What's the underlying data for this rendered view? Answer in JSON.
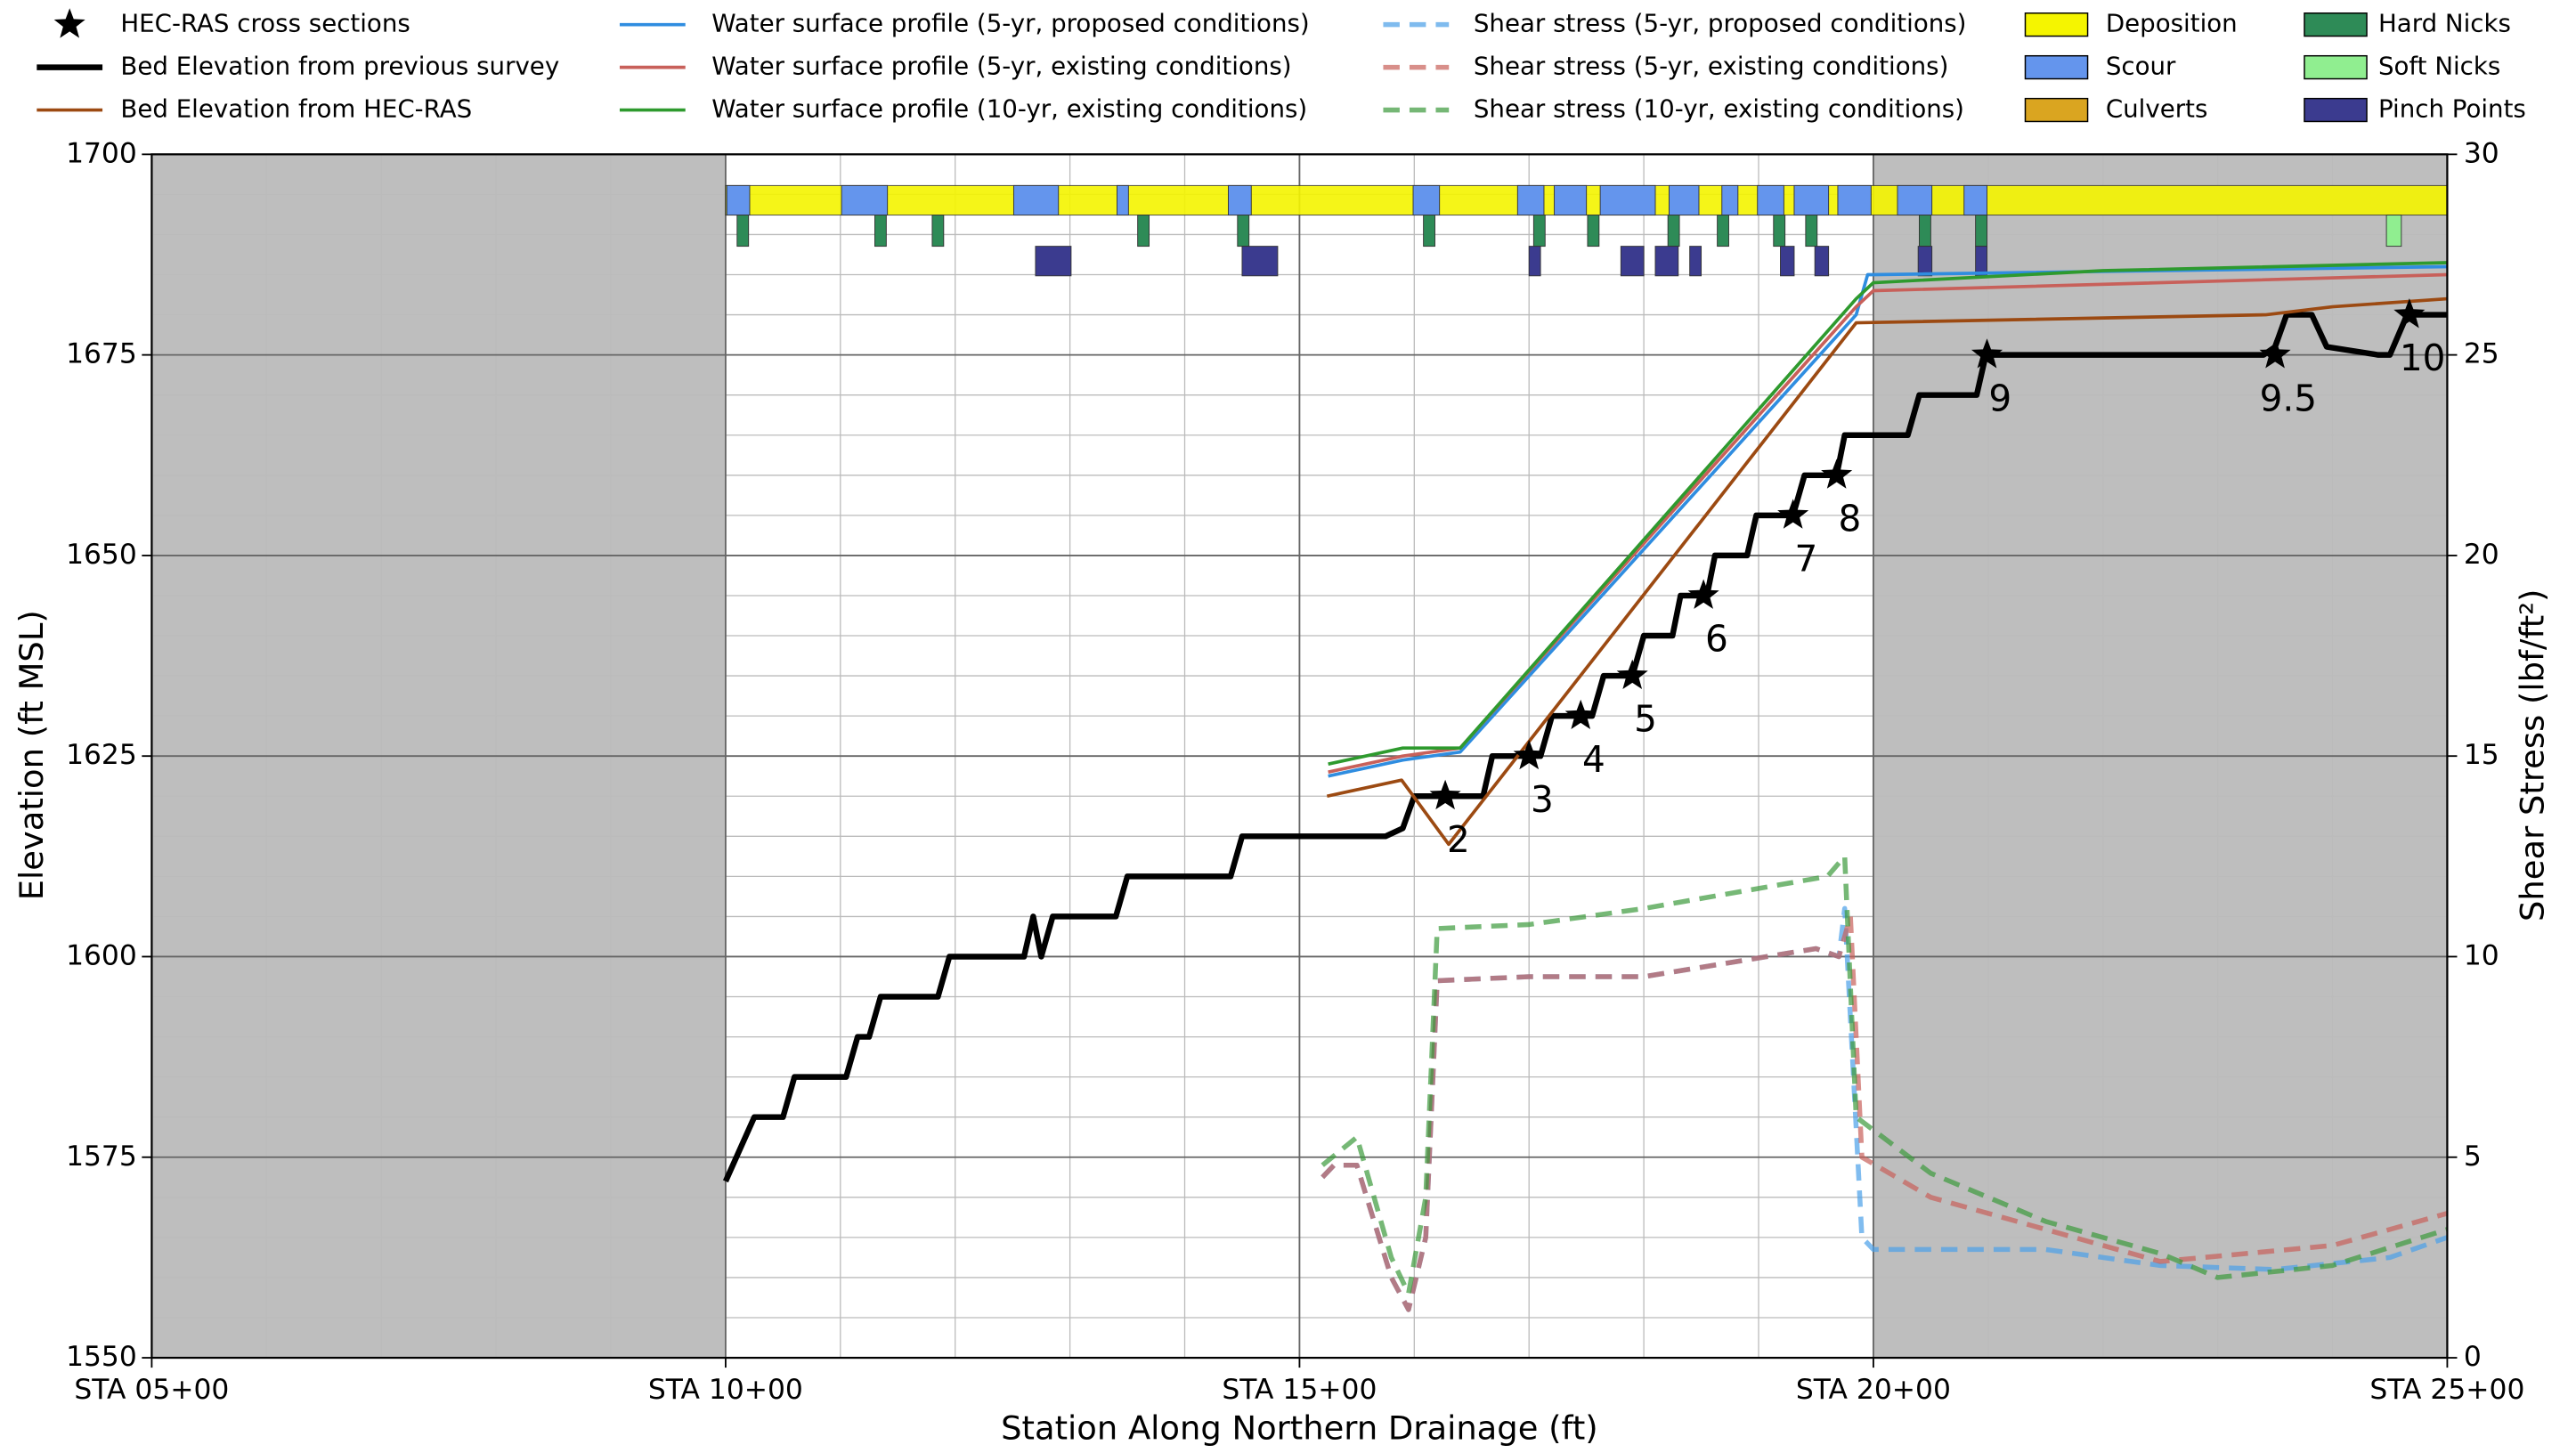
{
  "chart_data": {
    "type": "line",
    "xlabel": "Station Along Northern Drainage (ft)",
    "ylabel": "Elevation (ft MSL)",
    "y2label": "Shear Stress (lbf/ft²)",
    "xlim": [
      500,
      2500
    ],
    "ylim": [
      1550,
      1700
    ],
    "y2lim": [
      0,
      30
    ],
    "xticks": [
      {
        "value": 500,
        "label": "STA 05+00"
      },
      {
        "value": 1000,
        "label": "STA 10+00"
      },
      {
        "value": 1500,
        "label": "STA 15+00"
      },
      {
        "value": 2000,
        "label": "STA 20+00"
      },
      {
        "value": 2500,
        "label": "STA 25+00"
      }
    ],
    "yticks": [
      1550,
      1575,
      1600,
      1625,
      1650,
      1675,
      1700
    ],
    "y2ticks": [
      0,
      5,
      10,
      15,
      20,
      25,
      30
    ],
    "grid": true,
    "minor_grid": true,
    "shaded_ranges": [
      [
        500,
        1000
      ],
      [
        2000,
        2500
      ]
    ],
    "sections": {
      "name": "HEC-RAS cross sections",
      "color": "#000000",
      "x": [
        1627,
        1700,
        1745,
        1790,
        1852,
        1930,
        1968,
        2099,
        2350,
        2467
      ],
      "y": [
        1620,
        1625,
        1630,
        1635,
        1645,
        1655,
        1660,
        1675,
        1675,
        1680
      ],
      "labels": [
        "2",
        "3",
        "4",
        "5",
        "6",
        "7",
        "8",
        "9",
        "9.5",
        "10"
      ]
    },
    "series": [
      {
        "name": "Bed Elevation from previous survey",
        "color": "#000000",
        "style": "bold",
        "x": [
          1000,
          1025,
          1050,
          1060,
          1105,
          1115,
          1125,
          1135,
          1185,
          1195,
          1260,
          1268,
          1275,
          1285,
          1340,
          1350,
          1440,
          1450,
          1575,
          1590,
          1600,
          1660,
          1668,
          1710,
          1720,
          1755,
          1765,
          1790,
          1800,
          1825,
          1832,
          1855,
          1862,
          1890,
          1898,
          1930,
          1940,
          1968,
          1975,
          2030,
          2040,
          2090,
          2098,
          2340,
          2350,
          2360,
          2382,
          2395,
          2440,
          2450,
          2465,
          2500
        ],
        "values": [
          1572,
          1580,
          1580,
          1585,
          1585,
          1590,
          1590,
          1595,
          1595,
          1600,
          1600,
          1605,
          1600,
          1605,
          1605,
          1610,
          1610,
          1615,
          1615,
          1616,
          1620,
          1620,
          1625,
          1625,
          1630,
          1630,
          1635,
          1635,
          1640,
          1640,
          1645,
          1645,
          1650,
          1650,
          1655,
          1655,
          1660,
          1660,
          1665,
          1665,
          1670,
          1670,
          1675,
          1675,
          1676,
          1680,
          1680,
          1676,
          1675,
          1675,
          1680,
          1680
        ]
      },
      {
        "name": "Bed Elevation from HEC-RAS",
        "color": "#9c4a12",
        "style": "solid",
        "x": [
          1524,
          1589,
          1630,
          1985,
          2342,
          2400,
          2500
        ],
        "values": [
          1620,
          1622,
          1614,
          1679,
          1680,
          1681,
          1682
        ]
      },
      {
        "name": "Water surface profile (5-yr, proposed conditions)",
        "color": "#2f8de0",
        "style": "solid",
        "x": [
          1525,
          1590,
          1640,
          1985,
          1995,
          2000,
          2500
        ],
        "values": [
          1622.5,
          1624.5,
          1625.5,
          1680,
          1685,
          1685,
          1686
        ]
      },
      {
        "name": "Water surface profile (5-yr, existing conditions)",
        "color": "#c8605a",
        "style": "solid",
        "x": [
          1525,
          1590,
          1640,
          1985,
          2000,
          2500
        ],
        "values": [
          1623,
          1625,
          1626,
          1681,
          1683,
          1685
        ]
      },
      {
        "name": "Water surface profile (10-yr, existing conditions)",
        "color": "#2e9a2e",
        "style": "solid",
        "x": [
          1525,
          1590,
          1640,
          1985,
          2000,
          2200,
          2500
        ],
        "values": [
          1624,
          1626,
          1626,
          1682,
          1684,
          1685.5,
          1686.5
        ]
      },
      {
        "name": "Shear stress (5-yr, proposed conditions)",
        "color": "#4a9fe8",
        "style": "dashed",
        "axis": "y2",
        "x": [
          1520,
          1530,
          1550,
          1580,
          1595,
          1610,
          1620,
          1700,
          1800,
          1950,
          1970,
          1975,
          1990,
          2000,
          2150,
          2250,
          2350,
          2450,
          2500
        ],
        "values": [
          4.5,
          4.8,
          4.8,
          2,
          1.2,
          3,
          9.4,
          9.5,
          9.5,
          10.2,
          10,
          11.2,
          3,
          2.7,
          2.7,
          2.3,
          2.2,
          2.5,
          3
        ]
      },
      {
        "name": "Shear stress (5-yr, existing conditions)",
        "color": "#c8605a",
        "style": "dashed",
        "axis": "y2",
        "x": [
          1520,
          1530,
          1550,
          1580,
          1595,
          1610,
          1620,
          1700,
          1800,
          1950,
          1970,
          1980,
          1990,
          2050,
          2150,
          2250,
          2400,
          2500
        ],
        "values": [
          4.5,
          4.8,
          4.8,
          2,
          1.2,
          3,
          9.4,
          9.5,
          9.5,
          10.2,
          10,
          11,
          5,
          4,
          3.2,
          2.4,
          2.8,
          3.6
        ]
      },
      {
        "name": "Shear stress (10-yr, existing conditions)",
        "color": "#3c9a3c",
        "style": "dashed",
        "axis": "y2",
        "x": [
          1520,
          1550,
          1580,
          1595,
          1610,
          1620,
          1700,
          1800,
          1960,
          1975,
          1985,
          2050,
          2150,
          2250,
          2300,
          2400,
          2500
        ],
        "values": [
          4.8,
          5.5,
          2.5,
          1.6,
          4,
          10.7,
          10.8,
          11.2,
          12,
          12.5,
          6,
          4.6,
          3.4,
          2.6,
          2,
          2.3,
          3.2
        ]
      }
    ],
    "zones": [
      {
        "name": "Deposition",
        "color": "#f5f500",
        "ranges": [
          [
            1000,
            2500
          ]
        ]
      },
      {
        "name": "Scour",
        "color": "#6495ed",
        "ranges": [
          [
            1001,
            1021
          ],
          [
            1101,
            1141
          ],
          [
            1251,
            1290
          ],
          [
            1341,
            1351
          ],
          [
            1438,
            1458
          ],
          [
            1599,
            1622
          ],
          [
            1690,
            1713
          ],
          [
            1722,
            1750
          ],
          [
            1762,
            1810
          ],
          [
            1822,
            1848
          ],
          [
            1868,
            1882
          ],
          [
            1899,
            1922
          ],
          [
            1931,
            1961
          ],
          [
            1969,
            1998
          ],
          [
            2021,
            2051
          ],
          [
            2079,
            2099
          ]
        ]
      },
      {
        "name": "Culverts",
        "color": "#daa520"
      },
      {
        "name": "Hard Nicks",
        "color": "#2e8b57",
        "ranges": [
          [
            1010,
            1020
          ],
          [
            1130,
            1140
          ],
          [
            1180,
            1190
          ],
          [
            1359,
            1369
          ],
          [
            1446,
            1456
          ],
          [
            1608,
            1618
          ],
          [
            1704,
            1714
          ],
          [
            1751,
            1761
          ],
          [
            1821,
            1831
          ],
          [
            1864,
            1874
          ],
          [
            1913,
            1923
          ],
          [
            1941,
            1951
          ],
          [
            2040,
            2050
          ],
          [
            2089,
            2099
          ]
        ]
      },
      {
        "name": "Soft Nicks",
        "color": "#90ee90",
        "ranges": [
          [
            2447,
            2460
          ]
        ]
      },
      {
        "name": "Pinch Points",
        "color": "#3b3b8f",
        "ranges": [
          [
            1270,
            1301
          ],
          [
            1450,
            1481
          ],
          [
            1700,
            1710
          ],
          [
            1780,
            1800
          ],
          [
            1810,
            1830
          ],
          [
            1840,
            1850
          ],
          [
            1919,
            1931
          ],
          [
            1949,
            1961
          ],
          [
            2039,
            2051
          ],
          [
            2089,
            2099
          ]
        ]
      }
    ]
  }
}
